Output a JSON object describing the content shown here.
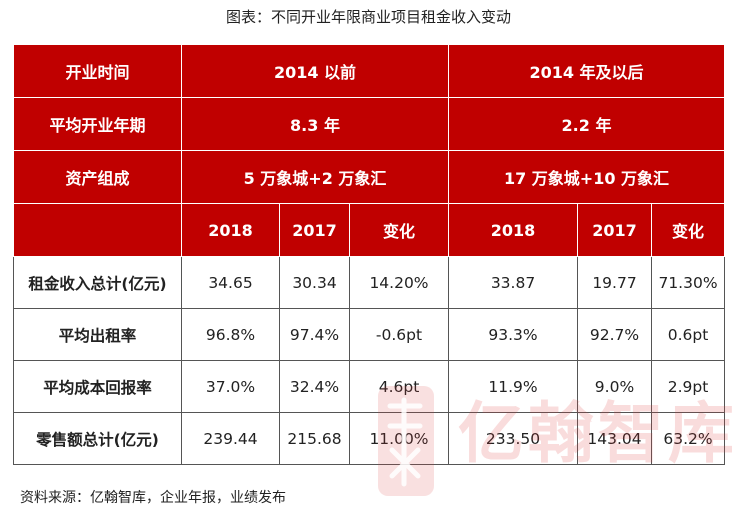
{
  "title": "图表：不同开业年限商业项目租金收入变动",
  "table": {
    "row_open_time": {
      "label": "开业时间",
      "group_a": "2014 以前",
      "group_b": "2014 年及以后"
    },
    "row_avg_years": {
      "label": "平均开业年期",
      "group_a": "8.3 年",
      "group_b": "2.2 年"
    },
    "row_assets": {
      "label": "资产组成",
      "group_a": "5 万象城+2 万象汇",
      "group_b": "17 万象城+10 万象汇"
    },
    "row_columns": {
      "label": "",
      "cols": [
        "2018",
        "2017",
        "变化",
        "2018",
        "2017",
        "变化"
      ]
    },
    "body_rows": [
      {
        "label": "租金收入总计(亿元)",
        "cells": [
          "34.65",
          "30.34",
          "14.20%",
          "33.87",
          "19.77",
          "71.30%"
        ]
      },
      {
        "label": "平均出租率",
        "cells": [
          "96.8%",
          "97.4%",
          "-0.6pt",
          "93.3%",
          "92.7%",
          "0.6pt"
        ]
      },
      {
        "label": "平均成本回报率",
        "cells": [
          "37.0%",
          "32.4%",
          "4.6pt",
          "11.9%",
          "9.0%",
          "2.9pt"
        ]
      },
      {
        "label": "零售额总计(亿元)",
        "cells": [
          "239.44",
          "215.68",
          "11.00%",
          "233.50",
          "143.04",
          "63.2%"
        ]
      }
    ]
  },
  "source": "资料来源：亿翰智库，企业年报，业绩发布",
  "watermark": {
    "text": "亿翰智库",
    "color": "#dc3c3c"
  }
}
